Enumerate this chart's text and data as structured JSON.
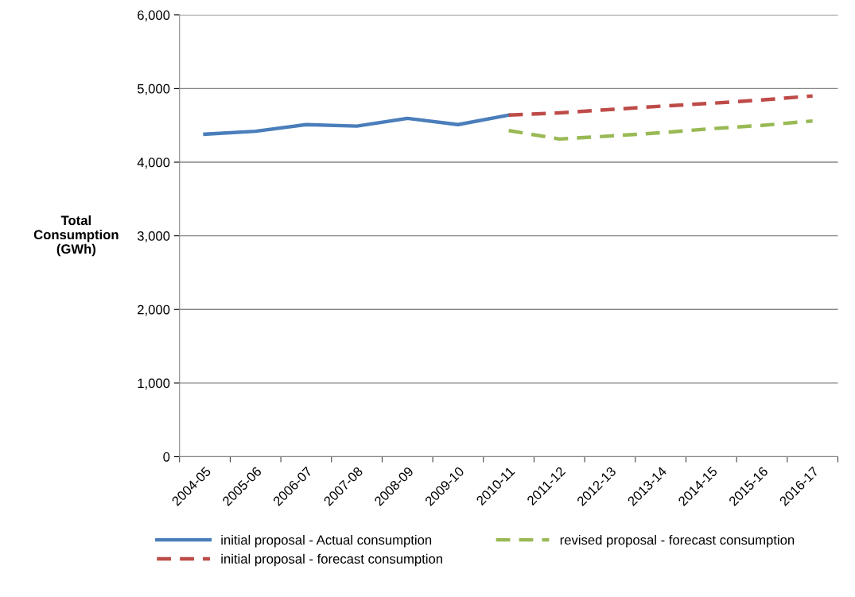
{
  "chart_data": {
    "type": "line",
    "ylabel": "Total\nConsumption\n(GWh)",
    "categories": [
      "2004-05",
      "2005-06",
      "2006-07",
      "2007-08",
      "2008-09",
      "2009-10",
      "2010-11",
      "2011-12",
      "2012-13",
      "2013-14",
      "2014-15",
      "2015-16",
      "2016-17"
    ],
    "series": [
      {
        "name": "initial proposal - Actual consumption",
        "color": "#4a7ebb",
        "line_style": "solid",
        "values": [
          4380,
          4420,
          4510,
          4490,
          4595,
          4510,
          4640,
          null,
          null,
          null,
          null,
          null,
          null
        ]
      },
      {
        "name": "initial proposal - forecast consumption",
        "color": "#be4b48",
        "line_style": "dashed",
        "values": [
          null,
          null,
          null,
          null,
          null,
          null,
          4640,
          4670,
          4715,
          4760,
          4800,
          4845,
          4900
        ]
      },
      {
        "name": "revised proposal - forecast consumption",
        "color": "#98b954",
        "line_style": "dashed",
        "values": [
          null,
          null,
          null,
          null,
          null,
          null,
          4430,
          4315,
          4355,
          4400,
          4455,
          4500,
          4560
        ]
      }
    ],
    "ylim": [
      0,
      6000
    ],
    "yticks": [
      {
        "value": 0,
        "label": "0"
      },
      {
        "value": 1000,
        "label": "1,000"
      },
      {
        "value": 2000,
        "label": "2,000"
      },
      {
        "value": 3000,
        "label": "3,000"
      },
      {
        "value": 4000,
        "label": "4,000"
      },
      {
        "value": 5000,
        "label": "5,000"
      },
      {
        "value": 6000,
        "label": "6,000"
      }
    ],
    "grid": "y",
    "legend": "bottom",
    "marker": "none"
  }
}
